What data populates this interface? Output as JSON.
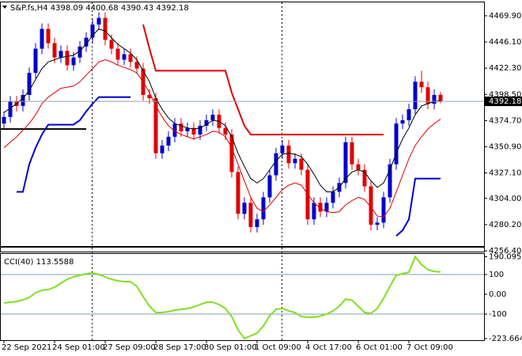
{
  "chart_data": [
    {
      "type": "candlestick",
      "title": "S&P.fs,H4  4398.09 4400.68 4390.43 4392.18",
      "categories": [
        "22 Sep 2021",
        null,
        null,
        null,
        null,
        null,
        null,
        null,
        "24 Sep 01:00",
        null,
        null,
        null,
        null,
        null,
        null,
        null,
        "27 Sep 09:00",
        null,
        null,
        null,
        null,
        null,
        null,
        null,
        "28 Sep 17:00",
        null,
        null,
        null,
        null,
        null,
        null,
        null,
        "30 Sep 01:00",
        null,
        null,
        null,
        null,
        null,
        null,
        null,
        "1 Oct 09:00",
        null,
        null,
        null,
        null,
        null,
        null,
        null,
        "4 Oct 17:00",
        null,
        null,
        null,
        null,
        null,
        null,
        null,
        "6 Oct 01:00",
        null,
        null,
        null,
        null,
        null,
        null,
        null,
        "7 Oct 09:00",
        null,
        null,
        null,
        null,
        null
      ],
      "open": [
        4372,
        4378,
        4392,
        4388,
        4398,
        4418,
        4440,
        4458,
        4445,
        4432,
        4438,
        4425,
        4432,
        4442,
        4450,
        4462,
        4468,
        4448,
        4440,
        4430,
        4435,
        4428,
        4422,
        4398,
        4395,
        4345,
        4352,
        4360,
        4372,
        4365,
        4368,
        4362,
        4370,
        4375,
        4380,
        4368,
        4362,
        4328,
        4290,
        4300,
        4278,
        4285,
        4305,
        4325,
        4345,
        4352,
        4336,
        4340,
        4330,
        4285,
        4300,
        4292,
        4300,
        4310,
        4318,
        4355,
        4335,
        4330,
        4315,
        4280,
        4282,
        4305,
        4335,
        4372,
        4375,
        4385,
        4410,
        4405,
        4390,
        4398.09
      ],
      "high": [
        4383,
        4397,
        4397,
        4403,
        4423,
        4445,
        4463,
        4463,
        4450,
        4443,
        4443,
        4437,
        4447,
        4455,
        4467,
        4473,
        4473,
        4453,
        4445,
        4440,
        4440,
        4433,
        4427,
        4403,
        4400,
        4357,
        4365,
        4377,
        4377,
        4373,
        4373,
        4375,
        4380,
        4385,
        4385,
        4373,
        4367,
        4333,
        4305,
        4305,
        4290,
        4310,
        4330,
        4350,
        4357,
        4357,
        4345,
        4345,
        4335,
        4305,
        4305,
        4305,
        4315,
        4323,
        4360,
        4360,
        4340,
        4335,
        4320,
        4287,
        4310,
        4340,
        4377,
        4380,
        4390,
        4415,
        4420,
        4410,
        4403,
        4400.68
      ],
      "low": [
        4367,
        4373,
        4383,
        4383,
        4393,
        4413,
        4435,
        4440,
        4427,
        4427,
        4420,
        4420,
        4427,
        4437,
        4445,
        4457,
        4443,
        4435,
        4425,
        4425,
        4423,
        4417,
        4393,
        4390,
        4340,
        4340,
        4347,
        4355,
        4360,
        4360,
        4357,
        4357,
        4365,
        4370,
        4363,
        4357,
        4323,
        4285,
        4285,
        4273,
        4273,
        4280,
        4300,
        4320,
        4340,
        4331,
        4331,
        4325,
        4280,
        4280,
        4287,
        4287,
        4295,
        4305,
        4313,
        4330,
        4325,
        4310,
        4275,
        4275,
        4277,
        4300,
        4330,
        4367,
        4370,
        4380,
        4400,
        4385,
        4385,
        4390.43
      ],
      "close": [
        4378,
        4392,
        4388,
        4398,
        4418,
        4440,
        4458,
        4445,
        4432,
        4438,
        4425,
        4432,
        4442,
        4450,
        4462,
        4468,
        4448,
        4440,
        4430,
        4435,
        4428,
        4422,
        4398,
        4395,
        4345,
        4352,
        4360,
        4372,
        4365,
        4368,
        4362,
        4370,
        4375,
        4380,
        4368,
        4362,
        4328,
        4290,
        4300,
        4278,
        4285,
        4305,
        4325,
        4345,
        4352,
        4336,
        4340,
        4330,
        4285,
        4300,
        4292,
        4300,
        4310,
        4318,
        4355,
        4335,
        4330,
        4315,
        4280,
        4282,
        4305,
        4335,
        4372,
        4375,
        4385,
        4410,
        4405,
        4390,
        4398,
        4392.18
      ],
      "up_color": "#0000cc",
      "down_color": "#e00000",
      "series": [
        {
          "color": "#000000",
          "width": 1,
          "values": [
            4382,
            4386,
            4390,
            4395,
            4402,
            4412,
            4422,
            4428,
            4430,
            4432,
            4433,
            4434,
            4438,
            4444,
            4452,
            4458,
            4456,
            4450,
            4444,
            4440,
            4436,
            4430,
            4420,
            4410,
            4395,
            4385,
            4377,
            4372,
            4370,
            4368,
            4367,
            4368,
            4371,
            4375,
            4374,
            4370,
            4360,
            4345,
            4333,
            4322,
            4318,
            4322,
            4330,
            4338,
            4344,
            4345,
            4344,
            4342,
            4335,
            4326,
            4316,
            4310,
            4310,
            4314,
            4322,
            4328,
            4330,
            4328,
            4320,
            4314,
            4318,
            4330,
            4345,
            4358,
            4368,
            4380,
            4388,
            4390,
            4392,
            4393
          ]
        },
        {
          "color": "#e00000",
          "width": 1,
          "values": [
            4350,
            4355,
            4360,
            4366,
            4372,
            4380,
            4390,
            4396,
            4400,
            4404,
            4405,
            4406,
            4410,
            4416,
            4422,
            4428,
            4430,
            4428,
            4425,
            4423,
            4421,
            4418,
            4410,
            4400,
            4388,
            4378,
            4370,
            4365,
            4362,
            4360,
            4358,
            4360,
            4362,
            4365,
            4364,
            4360,
            4350,
            4335,
            4320,
            4305,
            4295,
            4292,
            4298,
            4305,
            4312,
            4316,
            4318,
            4316,
            4308,
            4300,
            4295,
            4292,
            4291,
            4292,
            4298,
            4302,
            4305,
            4303,
            4296,
            4288,
            4287,
            4295,
            4310,
            4325,
            4340,
            4352,
            4360,
            4367,
            4372,
            4376
          ]
        },
        {
          "color": "#0000cc",
          "width": 2,
          "values": [
            null,
            null,
            4310,
            4310,
            4335,
            4350,
            4362,
            4371,
            4371,
            4371,
            4371,
            4371,
            4375,
            4383,
            4390,
            4396,
            4396,
            4396,
            4396,
            4396,
            4396,
            null,
            null,
            null,
            null,
            null,
            null,
            null,
            null,
            null,
            null,
            null,
            null,
            null,
            null,
            null,
            null,
            null,
            null,
            null,
            null,
            null,
            null,
            null,
            null,
            null,
            null,
            null,
            null,
            null,
            null,
            null,
            null,
            null,
            null,
            null,
            null,
            null,
            null,
            null,
            null,
            null,
            4270,
            4275,
            4285,
            4322,
            4322,
            4322,
            4322,
            4322
          ]
        },
        {
          "color": "#e00000",
          "width": 2,
          "values": [
            null,
            null,
            null,
            null,
            null,
            null,
            null,
            null,
            null,
            null,
            null,
            null,
            null,
            null,
            null,
            null,
            null,
            null,
            null,
            null,
            null,
            null,
            4462,
            4440,
            4420,
            4420,
            4420,
            4420,
            4420,
            4420,
            4420,
            4420,
            4420,
            4420,
            4420,
            4420,
            4400,
            4385,
            4370,
            4362,
            4362,
            4362,
            4362,
            4362,
            4362,
            4362,
            4362,
            4362,
            4362,
            4362,
            4362,
            4362,
            4362,
            4362,
            4362,
            4362,
            4362,
            4362,
            4362,
            4362,
            4362,
            null,
            null,
            null,
            null,
            null,
            null,
            null,
            null,
            null
          ]
        }
      ],
      "hlines": [
        {
          "value": 4367,
          "start": 0,
          "end": 13,
          "color": "#000000"
        },
        {
          "value": 4260,
          "color": "#000000"
        }
      ],
      "ylim": [
        4255.7,
        4482.8
      ],
      "yticks": [
        {
          "value": 4469.9,
          "label": "4469.90"
        },
        {
          "value": 4446.1,
          "label": "4446.10"
        },
        {
          "value": 4422.3,
          "label": "4422.30"
        },
        {
          "value": 4398.5,
          "label": "4398.50"
        },
        {
          "value": 4374.7,
          "label": "4374.70"
        },
        {
          "value": 4350.9,
          "label": "4350.90"
        },
        {
          "value": 4327.1,
          "label": "4327.10"
        },
        {
          "value": 4304,
          "label": "4304.00"
        },
        {
          "value": 4280.2,
          "label": "4280.20"
        },
        {
          "value": 4256.4,
          "label": "4256.40"
        }
      ]
    },
    {
      "type": "line",
      "title": "CCI(40) 113.5588",
      "color": "#80e020",
      "values": [
        -44,
        -40,
        -36,
        -28,
        -16,
        8,
        20,
        24,
        36,
        56,
        76,
        88,
        96,
        104,
        108,
        100,
        88,
        76,
        68,
        64,
        64,
        40,
        -12,
        -60,
        -92,
        -92,
        -88,
        -80,
        -76,
        -72,
        -64,
        -52,
        -40,
        -40,
        -52,
        -72,
        -112,
        -180,
        -223.6649,
        -210,
        -196,
        -160,
        -108,
        -76,
        -72,
        -84,
        -92,
        -112,
        -116,
        -116,
        -110,
        -100,
        -84,
        -60,
        -24,
        -30,
        -60,
        -92,
        -96,
        -72,
        -20,
        40,
        96,
        104,
        112,
        190.0953,
        150,
        125,
        115,
        113.5588
      ],
      "levels": [
        100,
        -100
      ],
      "ylim": [
        -232,
        208
      ],
      "yticks": [
        190.0953,
        100,
        {
          "value": 0,
          "label": "0.00"
        },
        -100,
        -223.6649
      ]
    }
  ]
}
